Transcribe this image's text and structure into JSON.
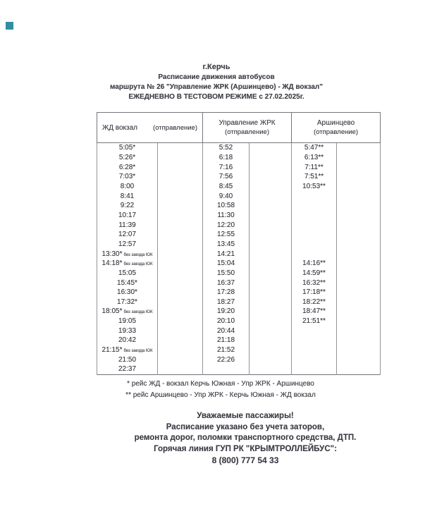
{
  "accent_color": "#2f8fa3",
  "header": {
    "city": "г.Керчь",
    "subtitle": "Расписание движения автобусов",
    "route": "маршрута № 26 \"Управление ЖРК (Аршинцево) - ЖД вокзал\"",
    "mode": "ЕЖЕДНЕВНО В ТЕСТОВОМ РЕЖИМЕ с 27.02.2025г."
  },
  "table": {
    "columns": [
      {
        "name": "ЖД вокзал",
        "sub": "(отправление)"
      },
      {
        "name": "Управление ЖРК",
        "sub": "(отправление)"
      },
      {
        "name": "Аршинцево",
        "sub": "(отправление)"
      }
    ],
    "rows": [
      {
        "zd": "5:05*",
        "note": "",
        "zhrk": "5:52",
        "arsh": "5:47**"
      },
      {
        "zd": "5:26*",
        "note": "",
        "zhrk": "6:18",
        "arsh": "6:13**"
      },
      {
        "zd": "6:28*",
        "note": "",
        "zhrk": "7:16",
        "arsh": "7:11**"
      },
      {
        "zd": "7:03*",
        "note": "",
        "zhrk": "7:56",
        "arsh": "7:51**"
      },
      {
        "zd": "8:00",
        "note": "",
        "zhrk": "8:45",
        "arsh": "10:53**"
      },
      {
        "zd": "8:41",
        "note": "",
        "zhrk": "9:40",
        "arsh": ""
      },
      {
        "zd": "9:22",
        "note": "",
        "zhrk": "10:58",
        "arsh": ""
      },
      {
        "zd": "10:17",
        "note": "",
        "zhrk": "11:30",
        "arsh": ""
      },
      {
        "zd": "11:39",
        "note": "",
        "zhrk": "12:20",
        "arsh": ""
      },
      {
        "zd": "12:07",
        "note": "",
        "zhrk": "12:55",
        "arsh": ""
      },
      {
        "zd": "12:57",
        "note": "",
        "zhrk": "13:45",
        "arsh": ""
      },
      {
        "zd": "13:30*",
        "note": "без заезда ЮК",
        "zhrk": "14:21",
        "arsh": ""
      },
      {
        "zd": "14:18*",
        "note": "без заезда ЮК",
        "zhrk": "15:04",
        "arsh": "14:16**"
      },
      {
        "zd": "15:05",
        "note": "",
        "zhrk": "15:50",
        "arsh": "14:59**"
      },
      {
        "zd": "15:45*",
        "note": "",
        "zhrk": "16:37",
        "arsh": "16:32**"
      },
      {
        "zd": "16:30*",
        "note": "",
        "zhrk": "17:28",
        "arsh": "17:18**"
      },
      {
        "zd": "17:32*",
        "note": "",
        "zhrk": "18:27",
        "arsh": "18:22**"
      },
      {
        "zd": "18:05*",
        "note": "без заезда ЮК",
        "zhrk": "19:20",
        "arsh": "18:47**"
      },
      {
        "zd": "19:05",
        "note": "",
        "zhrk": "20:10",
        "arsh": "21:51**"
      },
      {
        "zd": "19:33",
        "note": "",
        "zhrk": "20:44",
        "arsh": ""
      },
      {
        "zd": "20:42",
        "note": "",
        "zhrk": "21:18",
        "arsh": ""
      },
      {
        "zd": "21:15*",
        "note": "без заезда ЮК",
        "zhrk": "21:52",
        "arsh": ""
      },
      {
        "zd": "21:50",
        "note": "",
        "zhrk": "22:26",
        "arsh": ""
      },
      {
        "zd": "22:37",
        "note": "",
        "zhrk": "",
        "arsh": ""
      }
    ]
  },
  "footnotes": [
    "* рейс ЖД - вокзал Керчь Южная - Упр ЖРК - Аршинцево",
    "** рейс Аршинцево - Упр ЖРК - Керчь Южная - ЖД вокзал"
  ],
  "notice": {
    "greeting": "Уважаемые пассажиры!",
    "line1": "Расписание указано без учета заторов,",
    "line2": "ремонта дорог, поломки транспортного средства, ДТП.",
    "hotline": "Горячая линия ГУП РК \"КРЫМТРОЛЛЕЙБУС\":",
    "phone": "8 (800) 777 54 33"
  }
}
